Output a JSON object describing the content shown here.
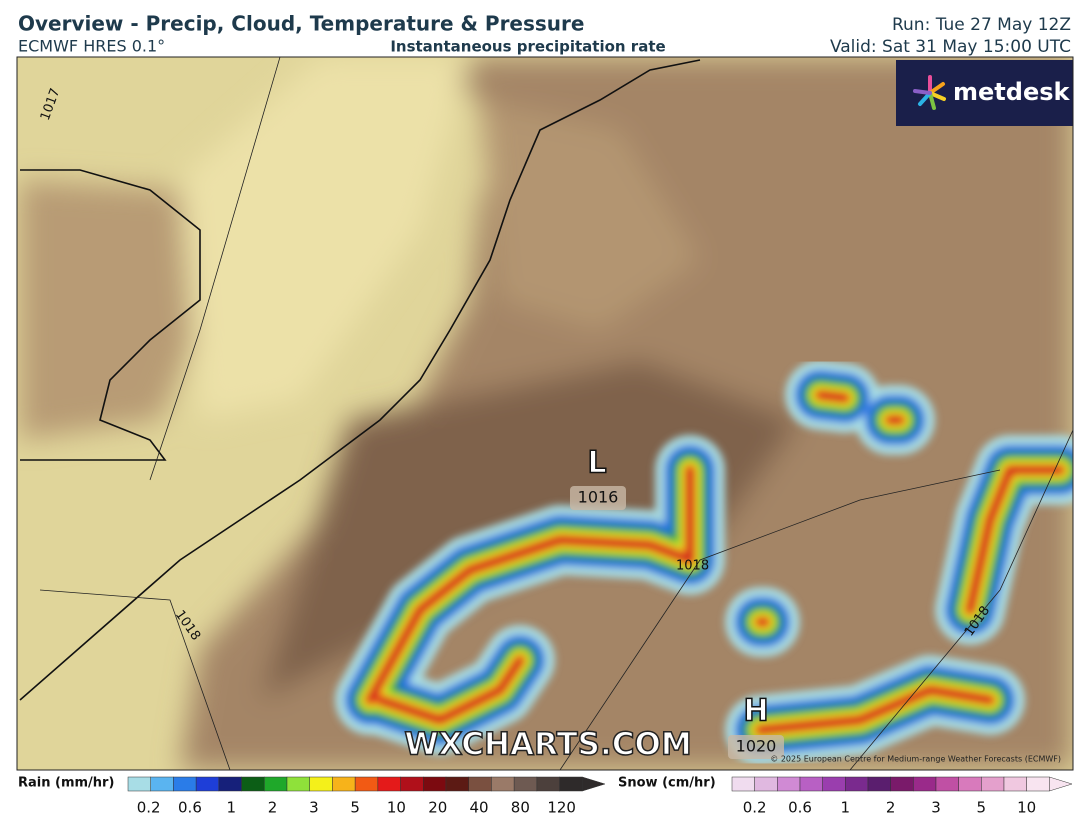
{
  "header": {
    "title": "Overview - Precip, Cloud, Temperature & Pressure",
    "model": "ECMWF HRES 0.1°",
    "subtitle": "Instantaneous precipitation rate",
    "run": "Run: Tue 27 May 12Z",
    "valid": "Valid: Sat 31 May 15:00 UTC"
  },
  "logo": "metdesk",
  "map": {
    "pressure_centers": [
      {
        "label": "L",
        "value": "1016"
      },
      {
        "label": "H",
        "value": "1020"
      }
    ],
    "isobar_labels": [
      "1017",
      "1018",
      "1018",
      "1018"
    ],
    "watermark": "WXCHARTS.COM",
    "copyright": "© 2025 European Centre for Medium-range Weather Forecasts (ECMWF)"
  },
  "legend": {
    "rain": {
      "label": "Rain (mm/hr)",
      "ticks": [
        "0.2",
        "0.6",
        "1",
        "2",
        "3",
        "5",
        "10",
        "20",
        "40",
        "80",
        "120"
      ]
    },
    "snow": {
      "label": "Snow (cm/hr)",
      "ticks": [
        "0.2",
        "0.6",
        "1",
        "2",
        "3",
        "5",
        "10"
      ]
    }
  }
}
